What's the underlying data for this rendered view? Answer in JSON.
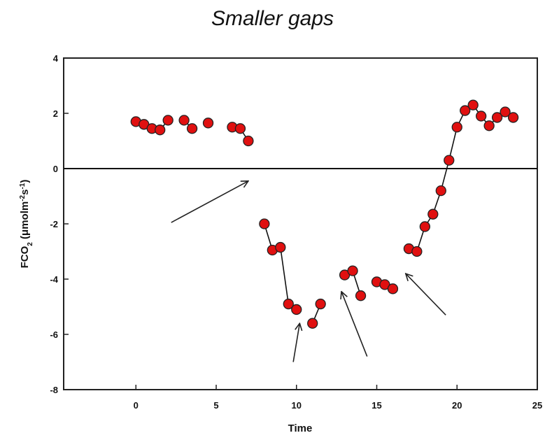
{
  "chart_data": {
    "type": "scatter",
    "title": "Smaller gaps",
    "xlabel": "Time",
    "ylabel_main": "FCO",
    "ylabel_sub": "2",
    "ylabel_unit_open": " (",
    "ylabel_mu": "μ",
    "ylabel_unit_mid": "molm",
    "ylabel_sup1": "-2",
    "ylabel_unit_s": "s",
    "ylabel_sup2": "-1",
    "ylabel_unit_close": ")",
    "xlim": [
      -4.5,
      25
    ],
    "ylim": [
      -8,
      4
    ],
    "x_ticks": [
      0,
      5,
      10,
      15,
      20,
      25
    ],
    "x_tick_labels": [
      "0",
      "5",
      "10",
      "15",
      "20",
      "25"
    ],
    "y_ticks": [
      -8,
      -6,
      -4,
      -2,
      0,
      2,
      4
    ],
    "y_tick_labels": [
      "-8",
      "-6",
      "-4",
      "-2",
      "0",
      "2",
      "4"
    ],
    "zero_line": true,
    "grid": false,
    "marker_color": "#e01010",
    "marker_edge": "#222222",
    "series": [
      {
        "points": [
          {
            "x": 0.0,
            "y": 1.7
          },
          {
            "x": 0.5,
            "y": 1.6
          },
          {
            "x": 1.0,
            "y": 1.45
          },
          {
            "x": 1.5,
            "y": 1.4
          },
          {
            "x": 2.0,
            "y": 1.75
          },
          {
            "x": 3.0,
            "y": 1.75
          },
          {
            "x": 3.5,
            "y": 1.45
          },
          {
            "x": 4.5,
            "y": 1.65
          },
          {
            "x": 6.0,
            "y": 1.5
          },
          {
            "x": 6.5,
            "y": 1.45
          },
          {
            "x": 7.0,
            "y": 1.0
          },
          {
            "x": 8.0,
            "y": -2.0
          },
          {
            "x": 8.5,
            "y": -2.95
          },
          {
            "x": 9.0,
            "y": -2.85
          },
          {
            "x": 9.5,
            "y": -4.9
          },
          {
            "x": 10.0,
            "y": -5.1
          },
          {
            "x": 11.0,
            "y": -5.6
          },
          {
            "x": 11.5,
            "y": -4.9
          },
          {
            "x": 13.0,
            "y": -3.85
          },
          {
            "x": 13.5,
            "y": -3.7
          },
          {
            "x": 14.0,
            "y": -4.6
          },
          {
            "x": 15.0,
            "y": -4.1
          },
          {
            "x": 15.5,
            "y": -4.2
          },
          {
            "x": 16.0,
            "y": -4.35
          },
          {
            "x": 17.0,
            "y": -2.9
          },
          {
            "x": 17.5,
            "y": -3.0
          },
          {
            "x": 18.0,
            "y": -2.1
          },
          {
            "x": 18.5,
            "y": -1.65
          },
          {
            "x": 19.0,
            "y": -0.8
          },
          {
            "x": 19.5,
            "y": 0.3
          },
          {
            "x": 20.0,
            "y": 1.5
          },
          {
            "x": 20.5,
            "y": 2.1
          },
          {
            "x": 21.0,
            "y": 2.3
          },
          {
            "x": 21.5,
            "y": 1.9
          },
          {
            "x": 22.0,
            "y": 1.55
          },
          {
            "x": 22.5,
            "y": 1.85
          },
          {
            "x": 23.0,
            "y": 2.05
          },
          {
            "x": 23.5,
            "y": 1.85
          }
        ],
        "segments": [
          [
            0,
            1,
            2,
            3,
            4
          ],
          [
            5,
            6
          ],
          [
            8,
            9,
            10
          ],
          [
            11,
            12,
            13,
            14,
            15
          ],
          [
            16,
            17
          ],
          [
            18,
            19,
            20
          ],
          [
            21,
            22,
            23
          ],
          [
            24,
            25,
            26,
            27,
            28,
            29,
            30,
            31,
            32,
            33,
            34,
            35,
            36,
            37
          ]
        ]
      }
    ],
    "annotations": [
      {
        "type": "arrow",
        "from": {
          "x": 2.2,
          "y": -1.95
        },
        "to": {
          "x": 7.0,
          "y": -0.45
        }
      },
      {
        "type": "arrow",
        "from": {
          "x": 9.8,
          "y": -7.0
        },
        "to": {
          "x": 10.2,
          "y": -5.6
        }
      },
      {
        "type": "arrow",
        "from": {
          "x": 14.4,
          "y": -6.8
        },
        "to": {
          "x": 12.8,
          "y": -4.45
        }
      },
      {
        "type": "arrow",
        "from": {
          "x": 19.3,
          "y": -5.3
        },
        "to": {
          "x": 16.8,
          "y": -3.8
        }
      }
    ]
  }
}
